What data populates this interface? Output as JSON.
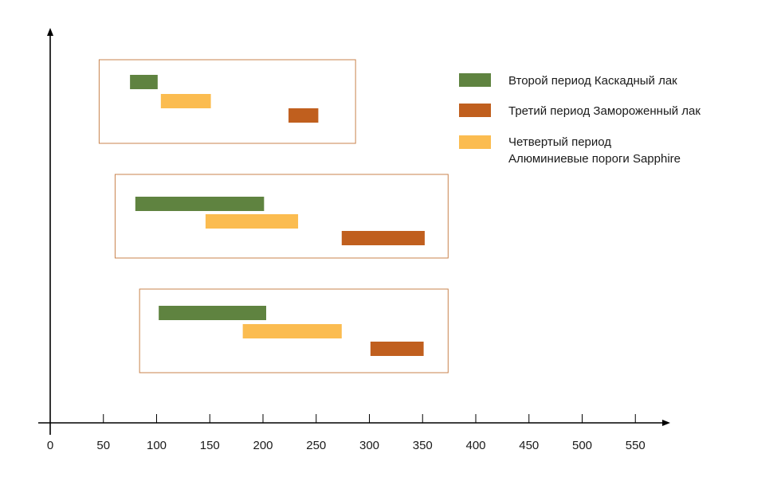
{
  "chart_data": {
    "type": "bar",
    "orientation": "horizontal-range",
    "title": "",
    "xlabel": "",
    "ylabel": "",
    "xlim": [
      0,
      575
    ],
    "xticks": [
      0,
      50,
      100,
      150,
      200,
      250,
      300,
      350,
      400,
      450,
      500,
      550
    ],
    "grid": false,
    "legend_position": "top-right",
    "colors": {
      "green": "#5f8340",
      "orange": "#c05f1e",
      "yellow": "#fbbc50",
      "frame": "#c8834c",
      "axis": "#000000"
    },
    "legend": [
      {
        "name": "Второй период Каскадный лак",
        "color": "#5f8340",
        "lines": [
          "Второй период Каскадный лак"
        ]
      },
      {
        "name": "Третий период Замороженный лак",
        "color": "#c05f1e",
        "lines": [
          "Третий период Замороженный лак"
        ]
      },
      {
        "name": "Четвертый период Алюминиевые пороги Sapphire",
        "color": "#fbbc50",
        "lines": [
          "Четвертый период",
          "Алюминиевые пороги Sapphire"
        ]
      }
    ],
    "groups": [
      {
        "frame_range": [
          46,
          287
        ],
        "bars": [
          {
            "series": "Второй период Каскадный лак",
            "color": "#5f8340",
            "start": 75,
            "end": 101
          },
          {
            "series": "Четвертый период Алюминиевые пороги Sapphire",
            "color": "#fbbc50",
            "start": 104,
            "end": 151
          },
          {
            "series": "Третий период Замороженный лак",
            "color": "#c05f1e",
            "start": 224,
            "end": 252
          }
        ]
      },
      {
        "frame_range": [
          61,
          374
        ],
        "bars": [
          {
            "series": "Второй период Каскадный лак",
            "color": "#5f8340",
            "start": 80,
            "end": 201
          },
          {
            "series": "Четвертый период Алюминиевые пороги Sapphire",
            "color": "#fbbc50",
            "start": 146,
            "end": 233
          },
          {
            "series": "Третий период Замороженный лак",
            "color": "#c05f1e",
            "start": 274,
            "end": 352
          }
        ]
      },
      {
        "frame_range": [
          84,
          374
        ],
        "bars": [
          {
            "series": "Второй период Каскадный лак",
            "color": "#5f8340",
            "start": 102,
            "end": 203
          },
          {
            "series": "Четвертый период Алюминиевые пороги Sapphire",
            "color": "#fbbc50",
            "start": 181,
            "end": 274
          },
          {
            "series": "Третий период Замороженный лак",
            "color": "#c05f1e",
            "start": 301,
            "end": 351
          }
        ]
      }
    ]
  }
}
